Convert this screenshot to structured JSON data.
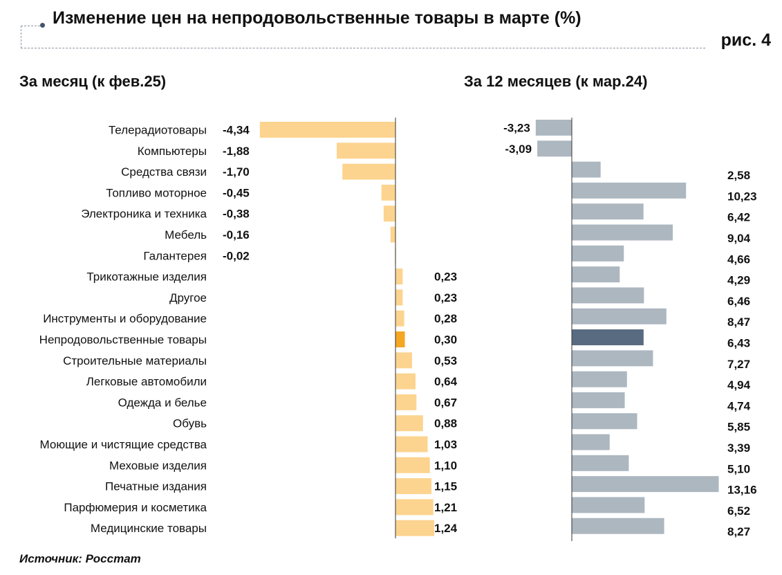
{
  "header": {
    "title": "Изменение цен на непродовольственные товары в марте (%)",
    "figure_number": "рис. 4"
  },
  "footer": {
    "source": "Источник: Росстат"
  },
  "colors": {
    "monthly_bar": "#fcd48f",
    "monthly_highlight": "#f5a623",
    "yearly_bar": "#acb7c0",
    "yearly_highlight": "#586b80"
  },
  "chart_data": [
    {
      "type": "bar",
      "orientation": "horizontal",
      "title": "За месяц (к фев.25)",
      "categories": [
        "Телерадиотовары",
        "Компьютеры",
        "Средства связи",
        "Топливо моторное",
        "Электроника и техника",
        "Мебель",
        "Галантерея",
        "Трикотажные изделия",
        "Другое",
        "Инструменты и оборудование",
        "Непродовольственные товары",
        "Строительные материалы",
        "Легковые автомобили",
        "Одежда и белье",
        "Обувь",
        "Моющие и чистящие средства",
        "Меховые изделия",
        "Печатные издания",
        "Парфюмерия и косметика",
        "Медицинские товары"
      ],
      "values": [
        -4.34,
        -1.88,
        -1.7,
        -0.45,
        -0.38,
        -0.16,
        -0.02,
        0.23,
        0.23,
        0.28,
        0.3,
        0.53,
        0.64,
        0.67,
        0.88,
        1.03,
        1.1,
        1.15,
        1.21,
        1.24
      ],
      "value_labels": [
        "-4,34",
        "-1,88",
        "-1,70",
        "-0,45",
        "-0,38",
        "-0,16",
        "-0,02",
        "0,23",
        "0,23",
        "0,28",
        "0,30",
        "0,53",
        "0,64",
        "0,67",
        "0,88",
        "1,03",
        "1,10",
        "1,15",
        "1,21",
        "1,24"
      ],
      "highlight_category": "Непродовольственные товары"
    },
    {
      "type": "bar",
      "orientation": "horizontal",
      "title": "За 12 месяцев (к мар.24)",
      "categories": [
        "Телерадиотовары",
        "Компьютеры",
        "Средства связи",
        "Топливо моторное",
        "Электроника и техника",
        "Мебель",
        "Галантерея",
        "Трикотажные изделия",
        "Другое",
        "Инструменты и оборудование",
        "Непродовольственные товары",
        "Строительные материалы",
        "Легковые автомобили",
        "Одежда и белье",
        "Обувь",
        "Моющие и чистящие средства",
        "Меховые изделия",
        "Печатные издания",
        "Парфюмерия и косметика",
        "Медицинские товары"
      ],
      "values": [
        -3.23,
        -3.09,
        2.58,
        10.23,
        6.42,
        9.04,
        4.66,
        4.29,
        6.46,
        8.47,
        6.43,
        7.27,
        4.94,
        4.74,
        5.85,
        3.39,
        5.1,
        13.16,
        6.52,
        8.27
      ],
      "value_labels": [
        "-3,23",
        "-3,09",
        "2,58",
        "10,23",
        "6,42",
        "9,04",
        "4,66",
        "4,29",
        "6,46",
        "8,47",
        "6,43",
        "7,27",
        "4,94",
        "4,74",
        "5,85",
        "3,39",
        "5,10",
        "13,16",
        "6,52",
        "8,27"
      ],
      "highlight_category": "Непродовольственные товары"
    }
  ]
}
